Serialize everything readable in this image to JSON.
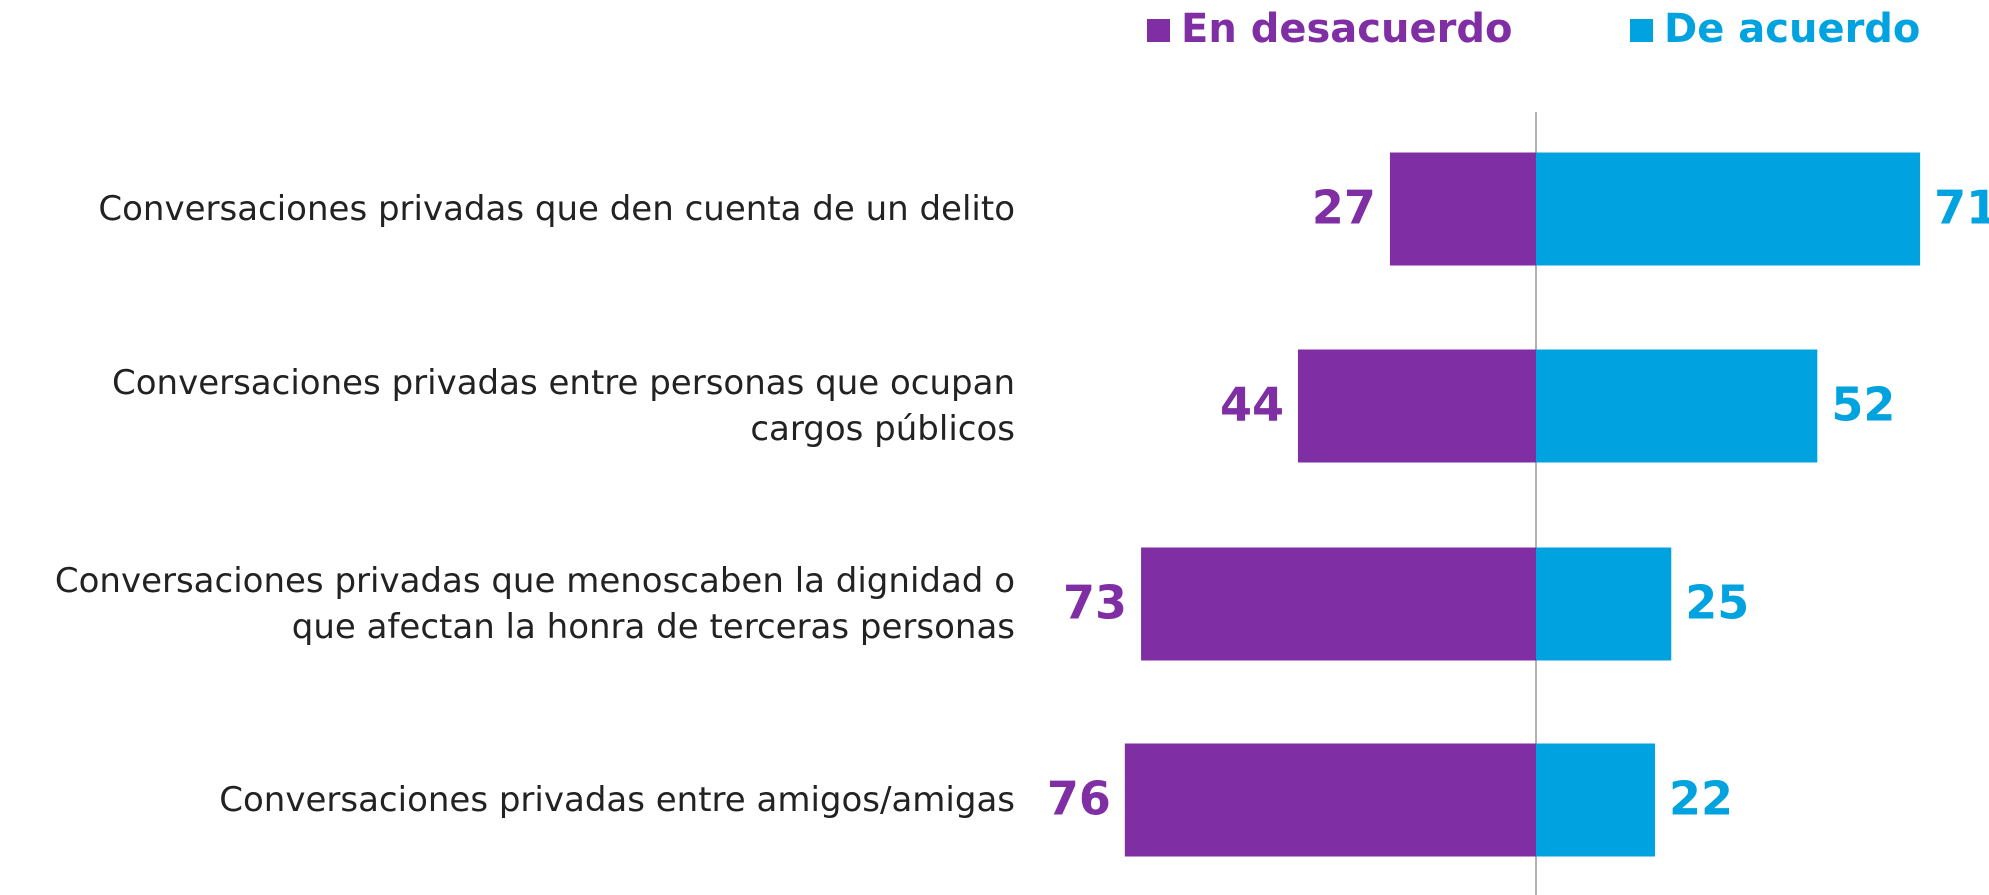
{
  "chart_data": {
    "type": "diverging-bar",
    "categories": [
      "Conversaciones privadas que den cuenta de un delito",
      "Conversaciones privadas entre personas que ocupan cargos públicos",
      "Conversaciones privadas que menoscaben la dignidad o que afectan la honra de terceras personas",
      "Conversaciones privadas entre amigos/amigas"
    ],
    "series": [
      {
        "name": "En desacuerdo",
        "color": "#7f2ea3",
        "values": [
          27,
          44,
          73,
          76
        ]
      },
      {
        "name": "De acuerdo",
        "color": "#00a3e0",
        "values": [
          71,
          52,
          25,
          22
        ]
      }
    ],
    "legend": "top-right"
  }
}
